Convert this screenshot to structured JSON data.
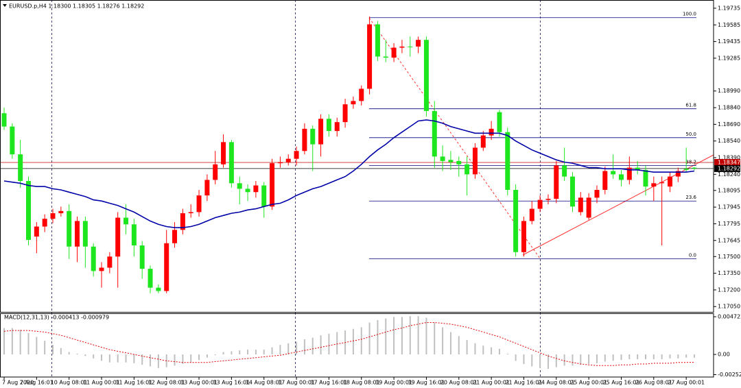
{
  "chart_data": [
    {
      "type": "candlestick",
      "title": "EURUSD.p,H4  1.18300 1.18305 1.18276 1.18292",
      "ylim": [
        1.17002,
        1.19778
      ],
      "yticks": [
        1.19735,
        1.19585,
        1.19435,
        1.19285,
        {
          "value": 1.1899,
          "label": "1.18990"
        },
        {
          "value": 1.1884,
          "label": "1.18840"
        },
        {
          "value": 1.1869,
          "label": "1.18690"
        },
        {
          "value": 1.1854,
          "label": "1.18540"
        },
        {
          "value": 1.1839,
          "label": "1.18390"
        },
        {
          "value": 1.1824,
          "label": "1.18240"
        },
        1.18095,
        1.17945,
        1.17795,
        1.17645,
        {
          "value": 1.175,
          "label": "1.17500"
        },
        {
          "value": 1.1735,
          "label": "1.17350"
        },
        {
          "value": 1.172,
          "label": "1.17200"
        },
        {
          "value": 1.1705,
          "label": "1.17050"
        }
      ],
      "grid": false,
      "up_color": "#ff0000",
      "down_color": "#1ee61e",
      "open": [
        1.1879,
        1.1867,
        1.1842,
        1.1818,
        1.1768,
        1.1777,
        1.1784,
        1.1789,
        1.1791,
        1.1759,
        1.1782,
        1.1759,
        1.1737,
        1.174,
        1.175,
        1.1785,
        1.1779,
        1.176,
        1.1739,
        1.1722,
        1.1719,
        1.1762,
        1.1774,
        1.1789,
        1.179,
        1.1805,
        1.1819,
        1.1833,
        1.1853,
        1.1816,
        1.1811,
        1.1808,
        1.1814,
        1.1795,
        1.1834,
        1.1835,
        1.1838,
        1.1845,
        1.1865,
        1.1851,
        1.1874,
        1.1863,
        1.1871,
        1.1887,
        1.189,
        1.1901,
        1.1959,
        1.193,
        1.1929,
        1.1938,
        1.1939,
        1.1939,
        1.1945,
        1.1881,
        1.184,
        1.1837,
        1.1836,
        1.1833,
        1.1824,
        1.1848,
        1.1859,
        1.188,
        1.1862,
        1.181,
        1.1754,
        1.1782,
        1.1793,
        1.1801,
        1.1802,
        1.1832,
        1.1822,
        1.179,
        1.1785,
        1.1803,
        1.181,
        1.1827,
        1.1824,
        1.1819,
        1.183,
        1.1828,
        1.1813,
        1.1816,
        1.1813,
        1.1822,
        1.1829,
        1.183
      ],
      "high": [
        1.1884,
        1.187,
        1.1855,
        1.1822,
        1.1781,
        1.1788,
        1.1793,
        1.1795,
        1.1797,
        1.1786,
        1.1786,
        1.1762,
        1.1745,
        1.1754,
        1.179,
        1.1797,
        1.1784,
        1.1764,
        1.1742,
        1.1725,
        1.1774,
        1.1781,
        1.1793,
        1.1797,
        1.181,
        1.1824,
        1.1845,
        1.186,
        1.1855,
        1.1822,
        1.1815,
        1.1818,
        1.1817,
        1.1838,
        1.184,
        1.1842,
        1.1849,
        1.187,
        1.1868,
        1.1878,
        1.1878,
        1.1875,
        1.1892,
        1.1894,
        1.1904,
        1.1966,
        1.1962,
        1.1945,
        1.1942,
        1.1945,
        1.1948,
        1.1948,
        1.1948,
        1.189,
        1.185,
        1.1845,
        1.184,
        1.184,
        1.1852,
        1.1863,
        1.1872,
        1.1882,
        1.1866,
        1.1815,
        1.1786,
        1.18,
        1.1805,
        1.1806,
        1.1836,
        1.1848,
        1.1826,
        1.1808,
        1.1807,
        1.1814,
        1.1831,
        1.1842,
        1.1828,
        1.184,
        1.1836,
        1.1832,
        1.1822,
        1.1822,
        1.1826,
        1.183,
        1.1848,
        1.18305
      ],
      "low": [
        1.1864,
        1.1838,
        1.1812,
        1.176,
        1.1753,
        1.1772,
        1.178,
        1.1786,
        1.1748,
        1.1745,
        1.174,
        1.1732,
        1.1722,
        1.1735,
        1.1722,
        1.177,
        1.175,
        1.173,
        1.1717,
        1.1717,
        1.1717,
        1.1758,
        1.177,
        1.1785,
        1.1786,
        1.18,
        1.1815,
        1.183,
        1.1812,
        1.1797,
        1.18,
        1.1803,
        1.1785,
        1.1792,
        1.183,
        1.1832,
        1.1832,
        1.1842,
        1.1827,
        1.184,
        1.1858,
        1.1858,
        1.1866,
        1.1883,
        1.1886,
        1.1896,
        1.1926,
        1.1925,
        1.1925,
        1.1933,
        1.193,
        1.1933,
        1.1876,
        1.183,
        1.1827,
        1.1828,
        1.1822,
        1.1805,
        1.182,
        1.1845,
        1.1855,
        1.1858,
        1.1805,
        1.175,
        1.175,
        1.1779,
        1.179,
        1.1797,
        1.1798,
        1.1818,
        1.179,
        1.1787,
        1.1783,
        1.1798,
        1.1806,
        1.182,
        1.1813,
        1.1815,
        1.1824,
        1.1805,
        1.18,
        1.176,
        1.1808,
        1.1817,
        1.1826,
        1.18276
      ],
      "close": [
        1.1867,
        1.1842,
        1.1818,
        1.1765,
        1.1777,
        1.1784,
        1.1789,
        1.1791,
        1.1759,
        1.1782,
        1.1759,
        1.1737,
        1.174,
        1.175,
        1.1785,
        1.1779,
        1.176,
        1.1739,
        1.1722,
        1.1719,
        1.1762,
        1.1774,
        1.1789,
        1.179,
        1.1805,
        1.1819,
        1.1833,
        1.1853,
        1.1816,
        1.1811,
        1.1808,
        1.1814,
        1.1795,
        1.1834,
        1.1835,
        1.1838,
        1.1845,
        1.1865,
        1.1851,
        1.1874,
        1.1863,
        1.1871,
        1.1887,
        1.189,
        1.1901,
        1.1959,
        1.193,
        1.1929,
        1.1938,
        1.1939,
        1.1939,
        1.1945,
        1.1881,
        1.184,
        1.1836,
        1.1835,
        1.1833,
        1.1824,
        1.1848,
        1.1859,
        1.1865,
        1.1862,
        1.181,
        1.1754,
        1.1782,
        1.1793,
        1.1801,
        1.1802,
        1.1832,
        1.1822,
        1.1795,
        1.1803,
        1.1803,
        1.181,
        1.1827,
        1.1824,
        1.1819,
        1.183,
        1.1828,
        1.1813,
        1.1816,
        1.1817,
        1.1822,
        1.1827,
        1.1828,
        1.18292
      ],
      "ma": {
        "color": "#0000a8",
        "values": [
          1.1818,
          1.1817,
          1.1816,
          1.1814,
          1.1813,
          1.1813,
          1.1811,
          1.181,
          1.1808,
          1.1806,
          1.1804,
          1.1801,
          1.18,
          1.1798,
          1.1796,
          1.1793,
          1.179,
          1.1786,
          1.1782,
          1.1779,
          1.1777,
          1.1776,
          1.1776,
          1.1777,
          1.1779,
          1.1782,
          1.1785,
          1.1787,
          1.1789,
          1.179,
          1.1792,
          1.1793,
          1.1795,
          1.1797,
          1.1798,
          1.1801,
          1.1805,
          1.1808,
          1.1811,
          1.1813,
          1.1816,
          1.1819,
          1.1822,
          1.1827,
          1.1833,
          1.184,
          1.1846,
          1.1851,
          1.1857,
          1.1862,
          1.1867,
          1.1872,
          1.1873,
          1.1872,
          1.187,
          1.1867,
          1.1865,
          1.1863,
          1.1861,
          1.1861,
          1.1861,
          1.1861,
          1.1859,
          1.1854,
          1.185,
          1.1846,
          1.1843,
          1.184,
          1.1837,
          1.1835,
          1.1834,
          1.1832,
          1.183,
          1.183,
          1.1829,
          1.1829,
          1.1829,
          1.1828,
          1.1828,
          1.1827,
          1.1826,
          1.1826,
          1.1826,
          1.1826,
          1.1826,
          1.1827
        ]
      },
      "fib_levels": [
        {
          "label": "100.0",
          "price": 1.1965
        },
        {
          "label": "61.8",
          "price": 1.1883
        },
        {
          "label": "50.0",
          "price": 1.1857
        },
        {
          "label": "38.2",
          "price": 1.1832
        },
        {
          "label": "23.6",
          "price": 1.18
        },
        {
          "label": "0.0",
          "price": 1.1748
        }
      ],
      "price_lines": [
        {
          "value": 1.18347,
          "color": "#c00000"
        },
        {
          "value": 1.18292,
          "color": "#000000"
        }
      ]
    },
    {
      "type": "macd",
      "title": "MACD(12,31,13) -0.000413 -0.000979",
      "ylim": [
        -0.00283,
        0.00507
      ],
      "yticks": [
        0.004722,
        {
          "value": 0,
          "label": "0.00"
        },
        -0.002529
      ],
      "categories": [
        "7 Aug 2020",
        null,
        null,
        null,
        "7 Aug 16:01",
        null,
        null,
        null,
        "10 Aug 08:01",
        null,
        null,
        null,
        "11 Aug 00:01",
        null,
        null,
        null,
        "11 Aug 16:01",
        null,
        null,
        null,
        "12 Aug 08:01",
        null,
        null,
        null,
        "13 Aug 00:01",
        null,
        null,
        null,
        "13 Aug 16:01",
        null,
        null,
        null,
        "14 Aug 08:01",
        null,
        null,
        null,
        "17 Aug 00:01",
        null,
        null,
        null,
        "17 Aug 16:01",
        null,
        null,
        null,
        "18 Aug 08:01",
        null,
        null,
        null,
        "19 Aug 00:01",
        null,
        null,
        null,
        "19 Aug 16:01",
        null,
        null,
        null,
        "20 Aug 08:01",
        null,
        null,
        null,
        "21 Aug 00:01",
        null,
        null,
        null,
        "21 Aug 16:01",
        null,
        null,
        null,
        "24 Aug 08:01",
        null,
        null,
        null,
        "25 Aug 00:01",
        null,
        null,
        null,
        "25 Aug 16:01",
        null,
        null,
        null,
        "26 Aug 08:01",
        null,
        null,
        null,
        "27 Aug 00:01",
        null
      ],
      "series": [
        {
          "style": "bar",
          "color": "#c0c0c0",
          "values": [
            0.0033,
            0.0033,
            0.0031,
            0.0027,
            0.0022,
            0.0017,
            0.0012,
            0.0008,
            0.0003,
            0.0001,
            -0.0002,
            -0.0005,
            -0.0008,
            -0.001,
            -0.001,
            -0.001,
            -0.0011,
            -0.0013,
            -0.0015,
            -0.0017,
            -0.0016,
            -0.0014,
            -0.0012,
            -0.001,
            -0.0007,
            -0.0004,
            -0.0001,
            0.0003,
            0.0004,
            0.0005,
            0.0006,
            0.0006,
            0.0006,
            0.0009,
            0.0012,
            0.0014,
            0.0016,
            0.0019,
            0.0021,
            0.0024,
            0.0026,
            0.0028,
            0.003,
            0.0032,
            0.0034,
            0.004,
            0.0043,
            0.0045,
            0.0047,
            0.0047,
            0.0048,
            0.0048,
            0.0046,
            0.004,
            0.0034,
            0.0028,
            0.0023,
            0.0018,
            0.0014,
            0.0011,
            0.0009,
            0.0007,
            0.0001,
            -0.0008,
            -0.0012,
            -0.0015,
            -0.0017,
            -0.0018,
            -0.0016,
            -0.0014,
            -0.0014,
            -0.0013,
            -0.0012,
            -0.0011,
            -0.0009,
            -0.0008,
            -0.0007,
            -0.0006,
            -0.0006,
            -0.0006,
            -0.0006,
            -0.0006,
            -0.0005,
            -0.0005,
            -0.0004,
            -0.000413
          ]
        },
        {
          "style": "dotted-line",
          "color": "#e00000",
          "values": [
            0.0029,
            0.003,
            0.003,
            0.003,
            0.0029,
            0.0028,
            0.0026,
            0.0024,
            0.0021,
            0.0018,
            0.0015,
            0.0012,
            0.0009,
            0.0006,
            0.0004,
            0.0002,
            0,
            -0.0002,
            -0.0004,
            -0.0006,
            -0.0008,
            -0.0009,
            -0.001,
            -0.001,
            -0.001,
            -0.001,
            -0.0009,
            -0.0008,
            -0.0007,
            -0.0006,
            -0.0005,
            -0.0004,
            -0.0003,
            -0.0002,
            -0.0001,
            0.0001,
            0.0003,
            0.0005,
            0.0007,
            0.0009,
            0.0011,
            0.0013,
            0.0015,
            0.0017,
            0.0019,
            0.0022,
            0.0025,
            0.0028,
            0.0031,
            0.0033,
            0.0036,
            0.0038,
            0.004,
            0.004,
            0.0039,
            0.0038,
            0.0036,
            0.0034,
            0.0031,
            0.0028,
            0.0025,
            0.0022,
            0.0018,
            0.0014,
            0.001,
            0.0006,
            0.0002,
            -0.0002,
            -0.0005,
            -0.0008,
            -0.001,
            -0.0012,
            -0.0013,
            -0.0014,
            -0.0014,
            -0.0014,
            -0.0013,
            -0.0013,
            -0.0012,
            -0.0012,
            -0.0011,
            -0.0011,
            -0.0011,
            -0.001,
            -0.001,
            -0.000979
          ]
        }
      ]
    }
  ]
}
